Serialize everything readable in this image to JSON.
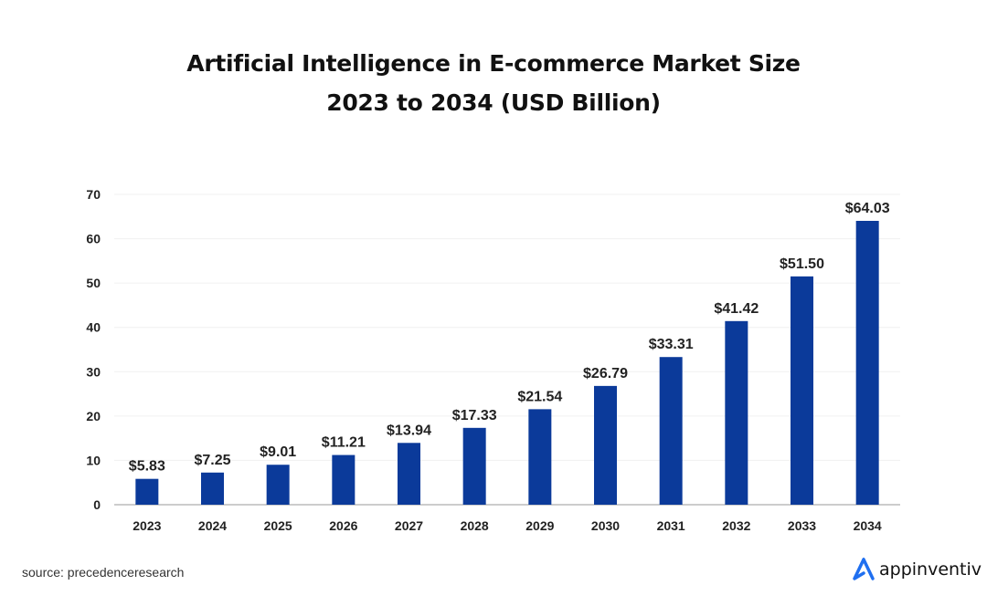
{
  "chart_data": {
    "type": "bar",
    "title": "Artificial Intelligence in E-commerce Market Size",
    "subtitle": "2023 to 2034 (USD Billion)",
    "categories": [
      "2023",
      "2024",
      "2025",
      "2026",
      "2027",
      "2028",
      "2029",
      "2030",
      "2031",
      "2032",
      "2033",
      "2034"
    ],
    "values": [
      5.83,
      7.25,
      9.01,
      11.21,
      13.94,
      17.33,
      21.54,
      26.79,
      33.31,
      41.42,
      51.5,
      64.03
    ],
    "data_labels": [
      "$5.83",
      "$7.25",
      "$9.01",
      "$11.21",
      "$13.94",
      "$17.33",
      "$21.54",
      "$26.79",
      "$33.31",
      "$41.42",
      "$51.50",
      "$64.03"
    ],
    "yticks": [
      0,
      10,
      20,
      30,
      40,
      50,
      60,
      70
    ],
    "ylim": [
      0,
      70
    ],
    "xlabel": "",
    "ylabel": "",
    "grid": true,
    "bar_color": "#0b3a9a"
  },
  "source": "source: precedenceresearch",
  "logo": {
    "text": "appinventiv",
    "color": "#1f6ff0"
  }
}
